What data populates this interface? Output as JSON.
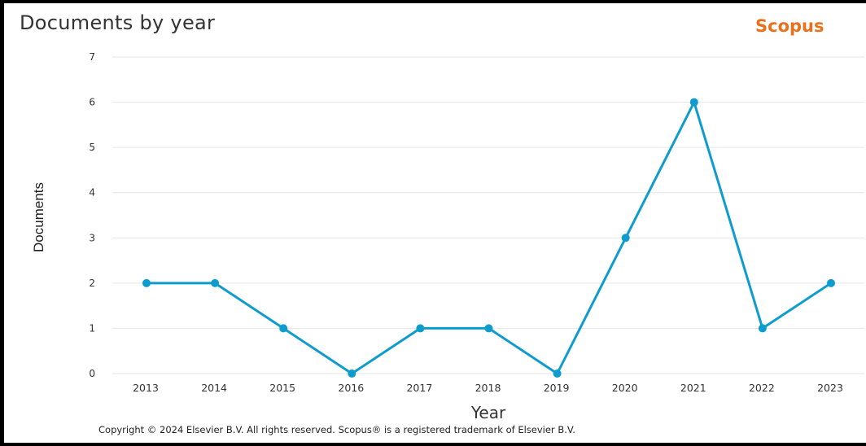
{
  "header": {
    "title": "Documents by year",
    "brand": "Scopus"
  },
  "footer": {
    "copyright": "Copyright © 2024 Elsevier B.V. All rights reserved. Scopus® is a registered trademark of Elsevier B.V."
  },
  "colors": {
    "line": "#0e9ccf",
    "brand": "#e9711c",
    "grid": "#e6e6e6"
  },
  "chart_data": {
    "type": "line",
    "title": "Documents by year",
    "xlabel": "Year",
    "ylabel": "Documents",
    "x": [
      "2013",
      "2014",
      "2015",
      "2016",
      "2017",
      "2018",
      "2019",
      "2020",
      "2021",
      "2022",
      "2023"
    ],
    "series": [
      {
        "values": [
          2,
          2,
          1,
          0,
          1,
          1,
          0,
          3,
          6,
          1,
          2
        ]
      }
    ],
    "yticks": [
      "0",
      "1",
      "2",
      "3",
      "4",
      "5",
      "6",
      "7"
    ],
    "ylim": [
      0,
      7
    ],
    "grid": true,
    "legend": "none"
  }
}
